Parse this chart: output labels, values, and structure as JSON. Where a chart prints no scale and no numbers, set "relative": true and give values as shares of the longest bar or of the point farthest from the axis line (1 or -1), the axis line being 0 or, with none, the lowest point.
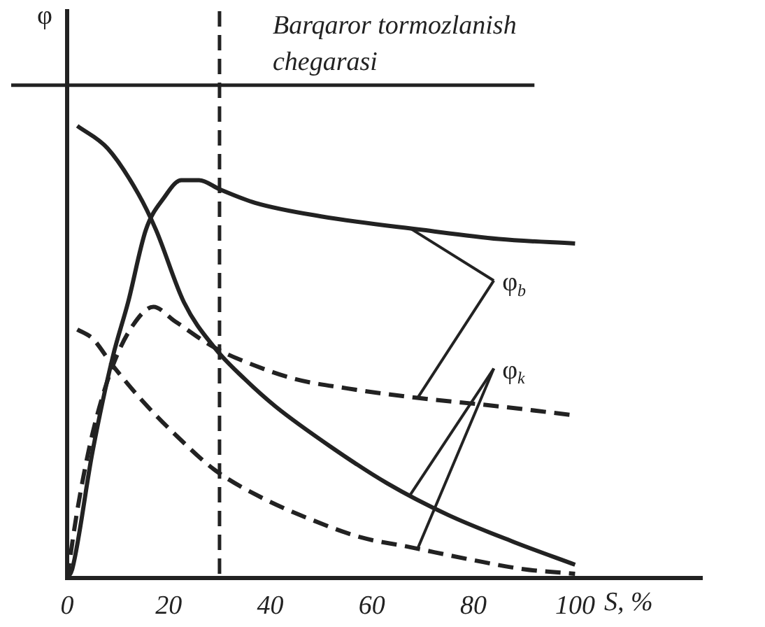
{
  "chart_data": {
    "type": "line",
    "relative": true,
    "xlabel": "S, %",
    "ylabel": "φ",
    "xlim": [
      0,
      125
    ],
    "xticks": [
      0,
      20,
      40,
      60,
      80,
      100
    ],
    "series": [
      {
        "color": "#222222",
        "line_style": "solid",
        "x": [
          0,
          1,
          5,
          9,
          12,
          15.5,
          19,
          22.5,
          26,
          30,
          37,
          50,
          70,
          85,
          100
        ],
        "values": [
          0,
          0.02,
          0.28,
          0.49,
          0.61,
          0.77,
          0.84,
          0.88,
          0.88,
          0.86,
          0.83,
          0.8,
          0.77,
          0.75,
          0.74
        ]
      },
      {
        "color": "#222222",
        "line_style": "dashed",
        "x": [
          0,
          2,
          5,
          9,
          13,
          17,
          21,
          29,
          37,
          45,
          55,
          68,
          85,
          100
        ],
        "values": [
          0,
          0.15,
          0.32,
          0.47,
          0.56,
          0.6,
          0.57,
          0.51,
          0.47,
          0.44,
          0.42,
          0.4,
          0.38,
          0.36
        ]
      },
      {
        "color": "#222222",
        "line_style": "solid",
        "x": [
          2,
          8,
          14,
          17.5,
          23,
          29,
          35,
          41,
          52,
          63,
          75,
          88,
          100
        ],
        "values": [
          1.0,
          0.95,
          0.85,
          0.77,
          0.61,
          0.51,
          0.44,
          0.38,
          0.29,
          0.21,
          0.14,
          0.08,
          0.03
        ]
      },
      {
        "color": "#222222",
        "line_style": "dashed",
        "x": [
          2,
          5,
          9,
          15,
          22,
          29,
          38,
          48,
          58,
          67,
          80,
          90,
          100
        ],
        "values": [
          0.55,
          0.53,
          0.47,
          0.39,
          0.31,
          0.24,
          0.18,
          0.13,
          0.09,
          0.07,
          0.04,
          0.02,
          0.01
        ]
      }
    ],
    "ref_lines": [
      {
        "axis": "y",
        "value": 1.09,
        "line_style": "solid"
      },
      {
        "axis": "x",
        "value": 30,
        "line_style": "dashed",
        "label": "Barqaror tormozlanish chegarasi"
      }
    ],
    "annotations": [
      "φ$_{b}$",
      "φ$_{k}$"
    ],
    "legend": false,
    "grid": false,
    "marker": "none"
  }
}
